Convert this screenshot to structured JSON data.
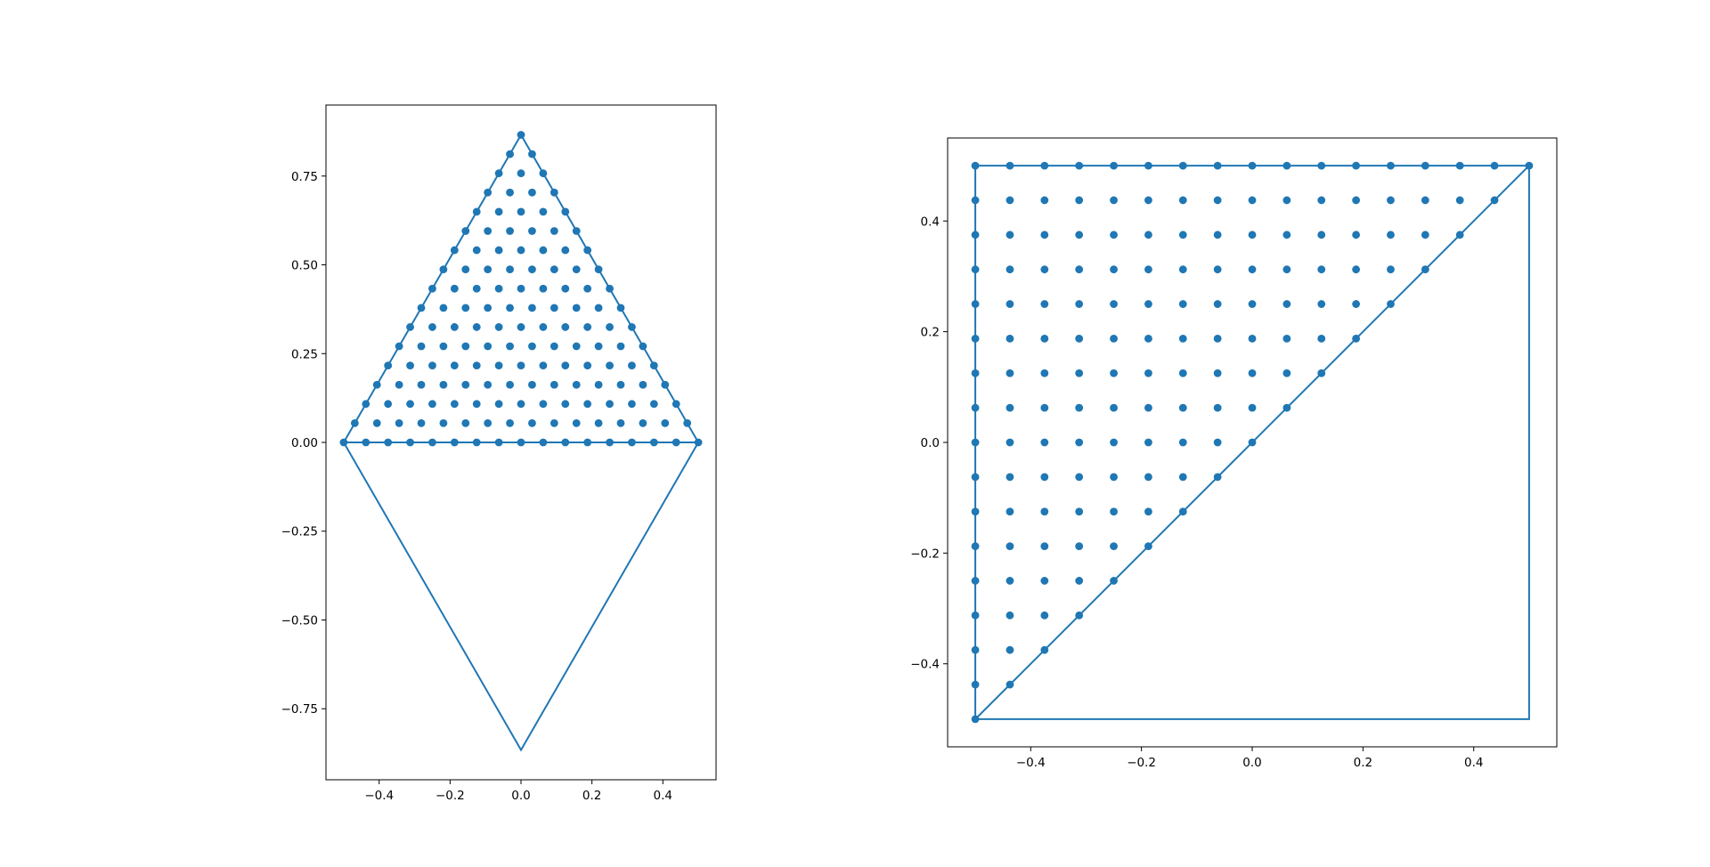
{
  "chart_data": [
    {
      "type": "scatter",
      "title": "",
      "xlabel": "",
      "ylabel": "",
      "xlim": [
        -0.55,
        0.55
      ],
      "ylim": [
        -0.95,
        0.95
      ],
      "xticks": [
        -0.4,
        -0.2,
        0.0,
        0.2,
        0.4
      ],
      "xtick_labels": [
        "−0.4",
        "−0.2",
        "0.0",
        "0.2",
        "0.4"
      ],
      "yticks": [
        -0.75,
        -0.5,
        -0.25,
        0.0,
        0.25,
        0.5,
        0.75
      ],
      "ytick_labels": [
        "−0.75",
        "−0.50",
        "−0.25",
        "0.00",
        "0.25",
        "0.50",
        "0.75"
      ],
      "grid": false,
      "outline": [
        [
          -0.5,
          0.0
        ],
        [
          0.0,
          0.866
        ],
        [
          0.5,
          0.0
        ],
        [
          0.0,
          -0.866
        ],
        [
          -0.5,
          0.0
        ],
        [
          0.5,
          0.0
        ]
      ],
      "points": {
        "layout": "triangular-lattice",
        "vertices": [
          [
            -0.5,
            0.0
          ],
          [
            0.5,
            0.0
          ],
          [
            0.0,
            0.866
          ]
        ],
        "divisions": 16
      },
      "color": "#1f77b4"
    },
    {
      "type": "scatter",
      "title": "",
      "xlabel": "",
      "ylabel": "",
      "xlim": [
        -0.55,
        0.55
      ],
      "ylim": [
        -0.55,
        0.55
      ],
      "xticks": [
        -0.4,
        -0.2,
        0.0,
        0.2,
        0.4
      ],
      "xtick_labels": [
        "−0.4",
        "−0.2",
        "0.0",
        "0.2",
        "0.4"
      ],
      "yticks": [
        -0.4,
        -0.2,
        0.0,
        0.2,
        0.4
      ],
      "ytick_labels": [
        "−0.4",
        "−0.2",
        "0.0",
        "0.2",
        "0.4"
      ],
      "grid": false,
      "outline": [
        [
          -0.5,
          -0.5
        ],
        [
          -0.5,
          0.5
        ],
        [
          0.5,
          0.5
        ],
        [
          0.5,
          -0.5
        ],
        [
          -0.5,
          -0.5
        ],
        [
          0.5,
          0.5
        ]
      ],
      "points": {
        "layout": "right-triangle-lattice",
        "corner": [
          -0.5,
          0.5
        ],
        "range": [
          -0.5,
          0.5
        ],
        "divisions": 16,
        "rule": "y >= x"
      },
      "color": "#1f77b4"
    }
  ]
}
